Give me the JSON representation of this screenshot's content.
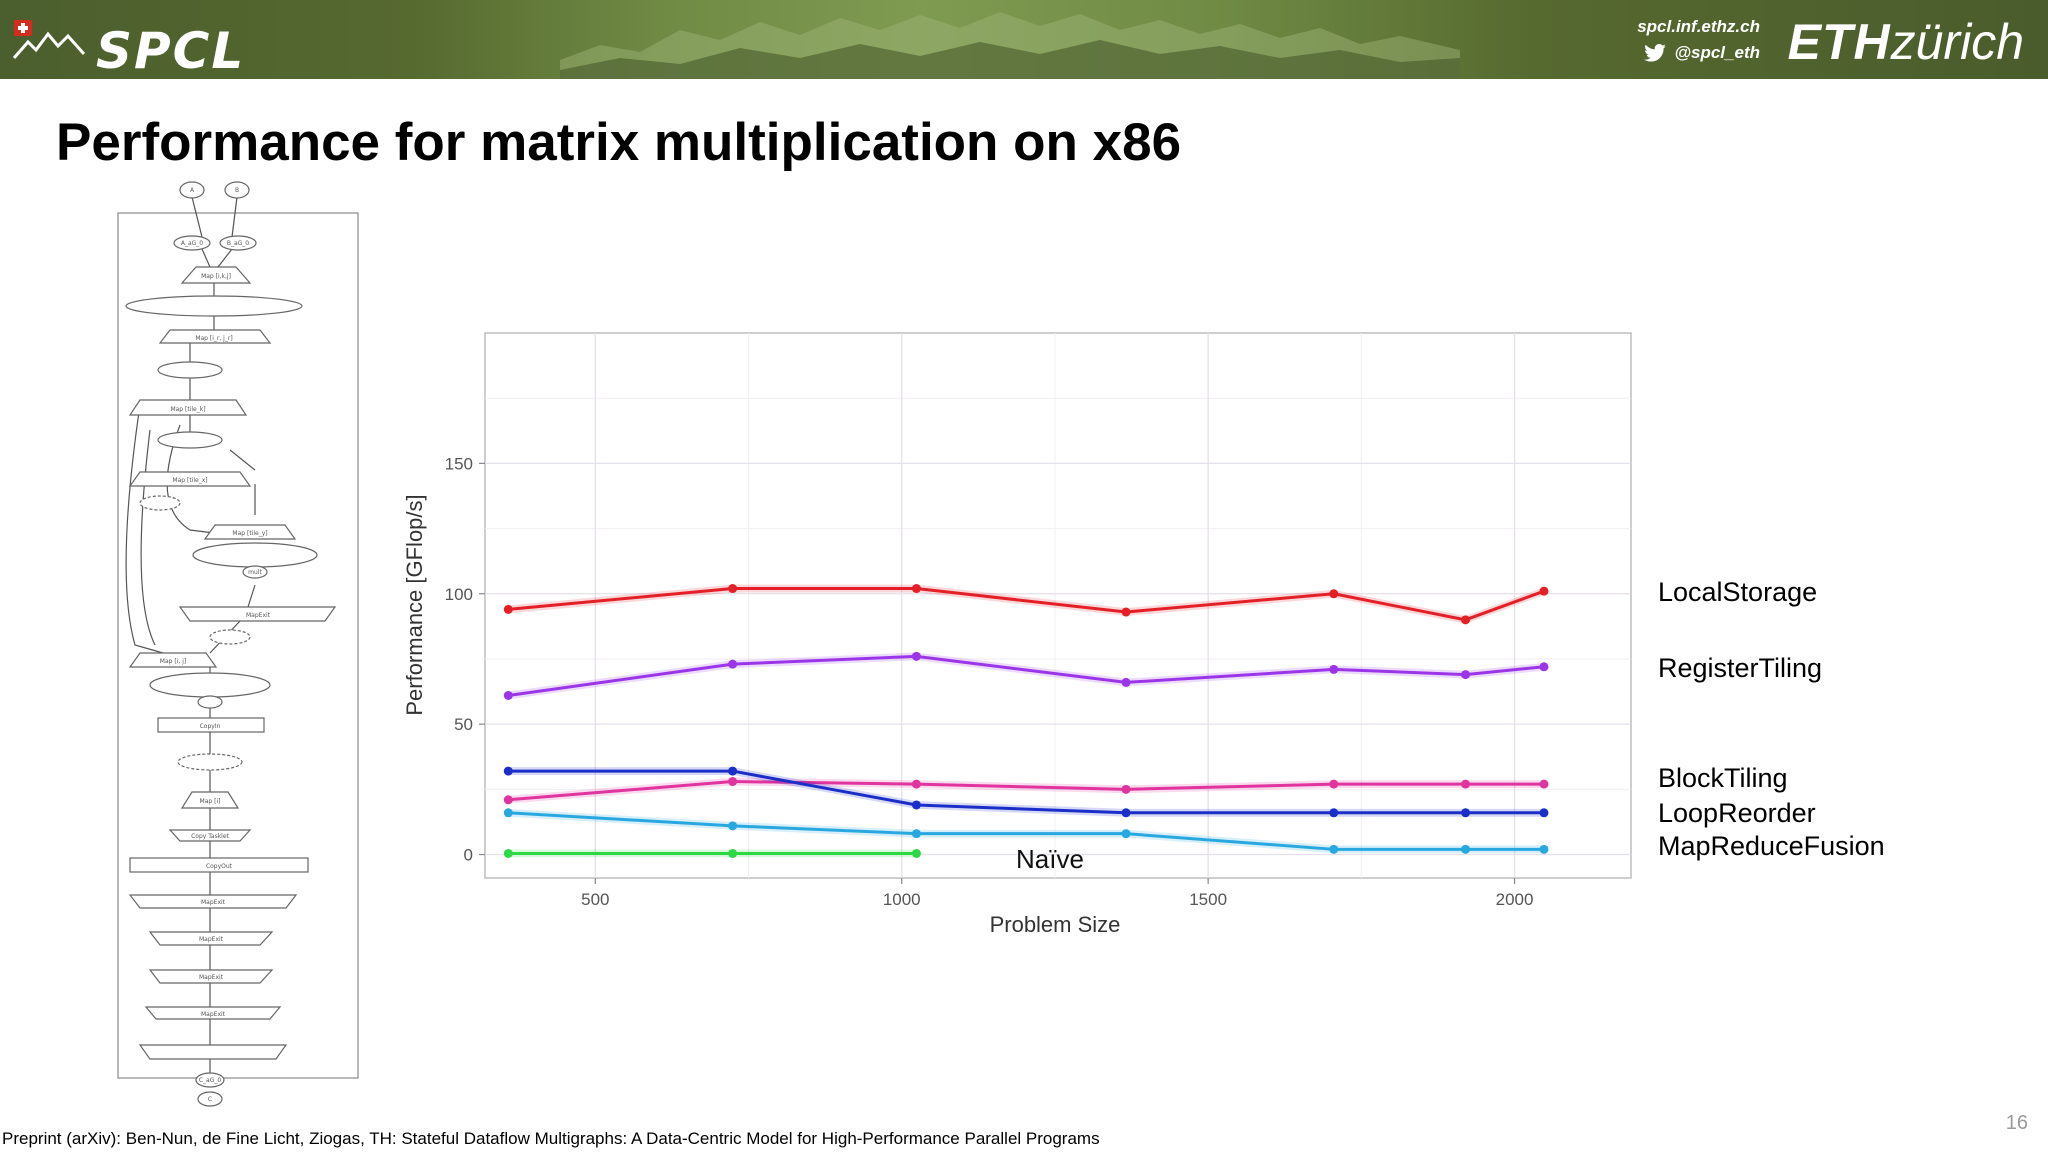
{
  "header": {
    "logo_text": "SPCL",
    "website": "spcl.inf.ethz.ch",
    "twitter": "@spcl_eth",
    "eth_bold": "ETH",
    "eth_light": "zürich"
  },
  "slide": {
    "title": "Performance for matrix multiplication on x86",
    "footer": "Preprint (arXiv): Ben-Nun, de Fine Licht, Ziogas, TH: Stateful Dataflow Multigraphs: A Data-Centric Model for High-Performance Parallel Programs",
    "page_number": "16"
  },
  "diagram": {
    "nodes": [
      "A",
      "B",
      "A_aG_0",
      "B_aG_0",
      "Map [i,k,j]",
      "Map [i_r, j_r]",
      "Map [tile_k]",
      "Map [tile_x]",
      "Map [tile_y]",
      "mult",
      "MapExit",
      "Map [i, j]",
      "CopyIn",
      "Map [i]",
      "Copy Tasklet",
      "CopyOut",
      "MapExit",
      "MapExit",
      "MapExit",
      "MapExit",
      "C_aG_0",
      "C"
    ]
  },
  "colors": {
    "LocalStorage": "#e32027",
    "RegisterTiling": "#9b36e8",
    "BlockTiling": "#e0349e",
    "LoopReorder": "#1b2fc8",
    "MapReduceFusion": "#29a8e0",
    "Naive": "#2cd844"
  },
  "chart_data": {
    "type": "line",
    "xlabel": "Problem Size",
    "ylabel": "Performance [GFlop/s]",
    "xlim": [
      320,
      2190
    ],
    "ylim": [
      -9,
      200
    ],
    "xticks": [
      500,
      1000,
      1500,
      2000
    ],
    "yticks": [
      0,
      50,
      100,
      150
    ],
    "grid": true,
    "series": [
      {
        "name": "LocalStorage",
        "color": "#e32027",
        "x": [
          358,
          724,
          1024,
          1366,
          1705,
          1920,
          2048
        ],
        "y": [
          94,
          102,
          102,
          93,
          100,
          90,
          101
        ]
      },
      {
        "name": "RegisterTiling",
        "color": "#9b36e8",
        "x": [
          358,
          724,
          1024,
          1366,
          1705,
          1920,
          2048
        ],
        "y": [
          61,
          73,
          76,
          66,
          71,
          69,
          72
        ]
      },
      {
        "name": "BlockTiling",
        "color": "#e0349e",
        "x": [
          358,
          724,
          1024,
          1366,
          1705,
          1920,
          2048
        ],
        "y": [
          21,
          28,
          27,
          25,
          27,
          27,
          27
        ]
      },
      {
        "name": "LoopReorder",
        "color": "#1b2fc8",
        "x": [
          358,
          724,
          1024,
          1366,
          1705,
          1920,
          2048
        ],
        "y": [
          32,
          32,
          19,
          16,
          16,
          16,
          16
        ]
      },
      {
        "name": "MapReduceFusion",
        "color": "#29a8e0",
        "x": [
          358,
          724,
          1024,
          1366,
          1705,
          1920,
          2048
        ],
        "y": [
          16,
          11,
          8,
          8,
          2,
          2,
          2
        ]
      },
      {
        "name": "Naïve",
        "color": "#2cd844",
        "x": [
          358,
          724,
          1024
        ],
        "y": [
          0.4,
          0.4,
          0.4
        ]
      }
    ],
    "legend": {
      "placement": "right",
      "labels": [
        "LocalStorage",
        "RegisterTiling",
        "BlockTiling",
        "LoopReorder",
        "MapReduceFusion"
      ]
    },
    "annotations": [
      {
        "text": "Naïve"
      }
    ]
  }
}
